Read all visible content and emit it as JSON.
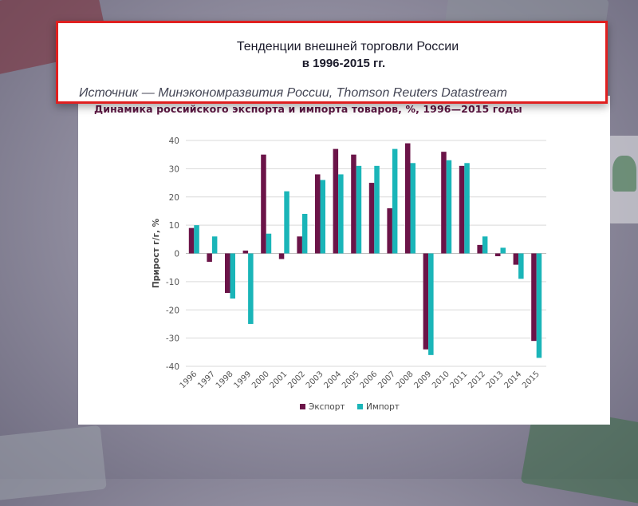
{
  "slide": {
    "title_line_1": "Тенденции внешней торговли России",
    "title_line_2": "в 1996-2015 гг.",
    "source": "Источник — Минэкономразвития России, Thomson Reuters Datastream"
  },
  "colors": {
    "export": "#6b1448",
    "import": "#1ab5b8",
    "frame_border": "#e02020",
    "axis_text": "#555555",
    "gridline": "#d9d9d9"
  },
  "chart_data": {
    "type": "bar",
    "title": "Динамика российского экспорта и импорта товаров, %, 1996—2015 годы",
    "ylabel": "Прирост г/г, %",
    "xlabel": "",
    "ylim": [
      -40,
      40
    ],
    "yticks": [
      40,
      30,
      20,
      10,
      0,
      -10,
      -20,
      -30,
      -40
    ],
    "grid": true,
    "legend_position": "bottom",
    "categories": [
      "1996",
      "1997",
      "1998",
      "1999",
      "2000",
      "2001",
      "2002",
      "2003",
      "2004",
      "2005",
      "2006",
      "2007",
      "2008",
      "2009",
      "2010",
      "2011",
      "2012",
      "2013",
      "2014",
      "2015"
    ],
    "series": [
      {
        "name": "Экспорт",
        "color": "#6b1448",
        "values": [
          9,
          -3,
          -14,
          1,
          35,
          -2,
          6,
          28,
          37,
          35,
          25,
          16,
          39,
          -34,
          36,
          31,
          3,
          -1,
          -4,
          -31
        ]
      },
      {
        "name": "Импорт",
        "color": "#1ab5b8",
        "values": [
          10,
          6,
          -16,
          -25,
          7,
          22,
          14,
          26,
          28,
          31,
          31,
          37,
          32,
          -36,
          33,
          32,
          6,
          2,
          -9,
          -37
        ]
      }
    ]
  }
}
